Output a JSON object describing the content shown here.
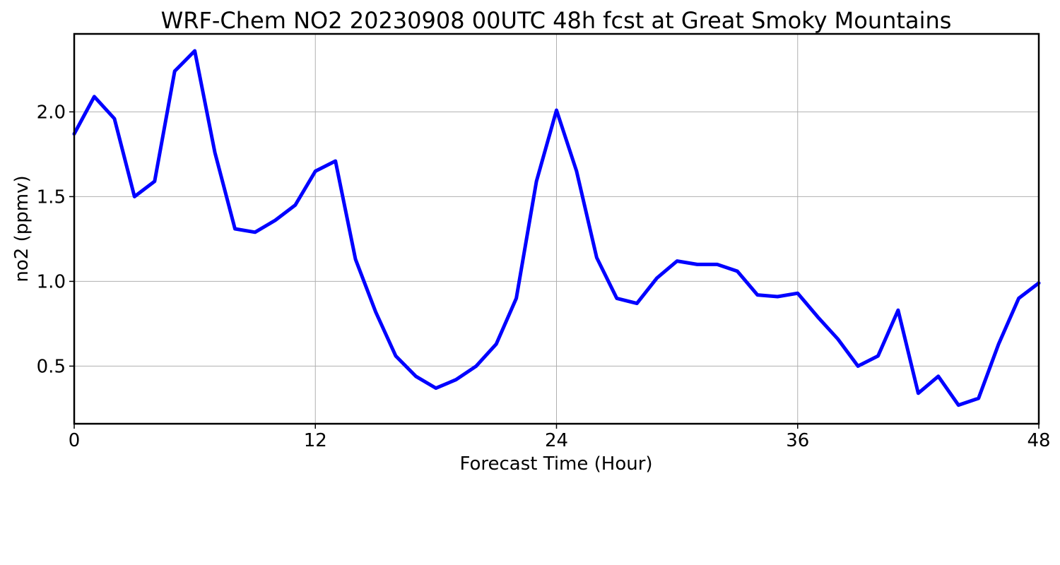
{
  "chart_data": {
    "type": "line",
    "title": "WRF-Chem NO2  20230908 00UTC 48h fcst at Great Smoky Mountains",
    "xlabel": "Forecast Time (Hour)",
    "ylabel": "no2  (ppmv)",
    "xlim": [
      0,
      48
    ],
    "ylim": [
      0.16,
      2.46
    ],
    "xticks": [
      0,
      12,
      24,
      36,
      48
    ],
    "xtick_labels": [
      "0",
      "12",
      "24",
      "36",
      "48"
    ],
    "yticks": [
      0.5,
      1.0,
      1.5,
      2.0
    ],
    "ytick_labels": [
      "0.5",
      "1.0",
      "1.5",
      "2.0"
    ],
    "grid": true,
    "series": [
      {
        "color": "#0000ff",
        "x": [
          0,
          1,
          2,
          3,
          4,
          5,
          6,
          7,
          8,
          9,
          10,
          11,
          12,
          13,
          14,
          15,
          16,
          17,
          18,
          19,
          20,
          21,
          22,
          23,
          24,
          25,
          26,
          27,
          28,
          29,
          30,
          31,
          32,
          33,
          34,
          35,
          36,
          37,
          38,
          39,
          40,
          41,
          42,
          43,
          44,
          45,
          46,
          47,
          48
        ],
        "values": [
          1.87,
          2.09,
          1.96,
          1.5,
          1.59,
          2.24,
          2.36,
          1.76,
          1.31,
          1.29,
          1.36,
          1.45,
          1.65,
          1.71,
          1.13,
          0.82,
          0.56,
          0.44,
          0.37,
          0.42,
          0.5,
          0.63,
          0.9,
          1.59,
          2.01,
          1.65,
          1.14,
          0.9,
          0.87,
          1.02,
          1.12,
          1.1,
          1.1,
          1.06,
          0.92,
          0.91,
          0.93,
          0.79,
          0.66,
          0.5,
          0.56,
          0.83,
          0.34,
          0.44,
          0.27,
          0.31,
          0.63,
          0.9,
          0.99
        ]
      }
    ]
  }
}
